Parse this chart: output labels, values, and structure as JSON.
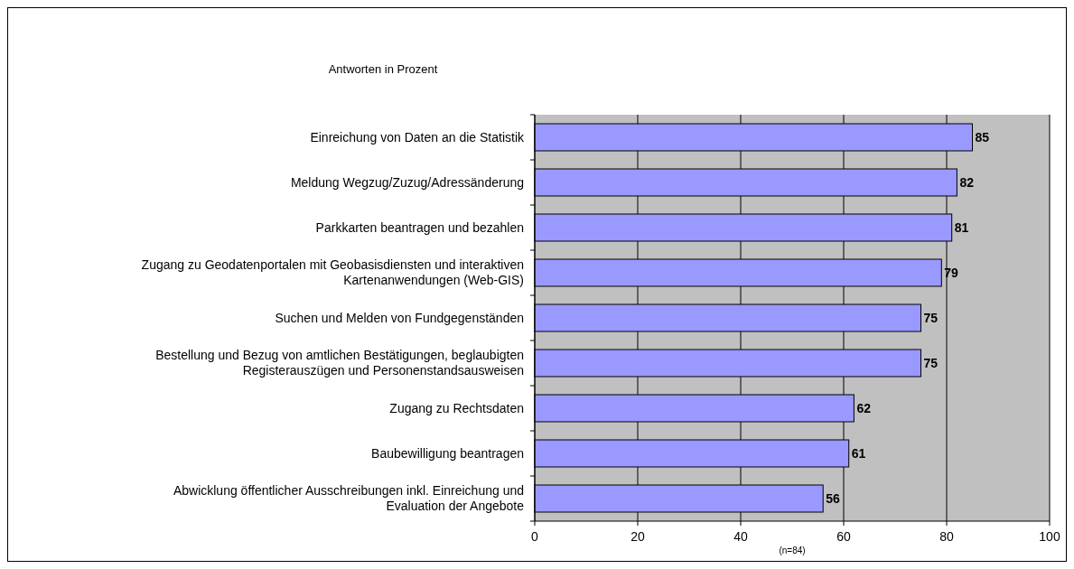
{
  "chart_data": {
    "type": "bar",
    "orientation": "horizontal",
    "title": "Antworten in Prozent",
    "categories": [
      "Einreichung von Daten an die Statistik",
      "Meldung Wegzug/Zuzug/Adressänderung",
      "Parkkarten beantragen und bezahlen",
      "Zugang zu Geodatenportalen mit Geobasisdiensten und interaktiven Kartenanwendungen (Web-GIS)",
      "Suchen und Melden von Fundgegenständen",
      "Bestellung und Bezug von amtlichen Bestätigungen, beglaubigten Registerauszügen und Personenstandsausweisen",
      "Zugang zu Rechtsdaten",
      "Baubewilligung beantragen",
      "Abwicklung öffentlicher Ausschreibungen inkl. Einreichung und Evaluation der Angebote"
    ],
    "values": [
      85,
      82,
      81,
      79,
      75,
      75,
      62,
      61,
      56
    ],
    "color": "#9999ff",
    "data_labels": true,
    "xlim": [
      0,
      100
    ],
    "xticks": [
      0,
      20,
      40,
      60,
      80,
      100
    ],
    "grid": "x",
    "annotations": [
      "(n=84)"
    ]
  }
}
